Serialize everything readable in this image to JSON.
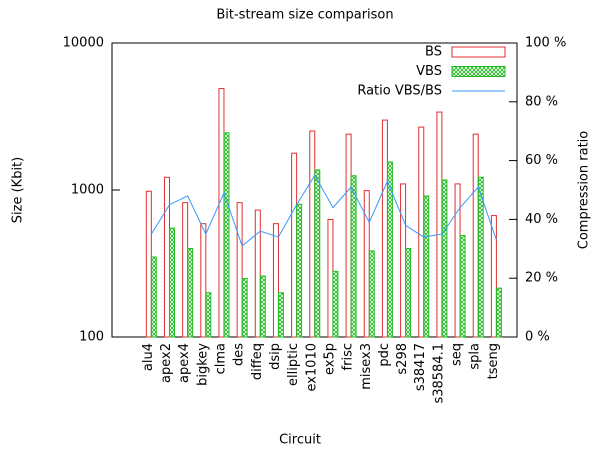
{
  "chart_data": {
    "type": "bar",
    "title": "Bit-stream size comparison",
    "x_label": "Circuit",
    "y_label": "Size (Kbit)",
    "y2_label": "Compression ratio",
    "log_y": true,
    "legend": "upper right",
    "categories": [
      "alu4",
      "apex2",
      "apex4",
      "bigkey",
      "clma",
      "des",
      "diffeq",
      "dsip",
      "elliptic",
      "ex1010",
      "ex5p",
      "frisc",
      "misex3",
      "pdc",
      "s298",
      "s38417",
      "s38584.1",
      "seq",
      "spla",
      "tseng"
    ],
    "series": [
      {
        "name": "BS",
        "type": "bar",
        "color": "#e03030",
        "values": [
          980,
          1220,
          820,
          590,
          4900,
          820,
          730,
          590,
          1780,
          2520,
          630,
          2400,
          990,
          2990,
          1100,
          2680,
          3390,
          1100,
          2400,
          670
        ]
      },
      {
        "name": "VBS",
        "type": "bar",
        "color": "#22bb22",
        "values": [
          350,
          550,
          400,
          200,
          2450,
          250,
          260,
          200,
          800,
          1370,
          280,
          1250,
          385,
          1550,
          400,
          910,
          1170,
          490,
          1220,
          215
        ]
      },
      {
        "name": "Ratio VBS/BS",
        "type": "line",
        "axis": "y2",
        "color": "#3399ff",
        "values": [
          35,
          45,
          48,
          35,
          49,
          31,
          36,
          34,
          45,
          55,
          44,
          51,
          39,
          53,
          38,
          34,
          35,
          44,
          51,
          33
        ]
      }
    ],
    "ylim": [
      100,
      10000
    ],
    "yticks": [
      100,
      1000,
      10000
    ],
    "y2lim": [
      0,
      100
    ],
    "y2ticks": [
      {
        "value": 0,
        "label": "0 %"
      },
      {
        "value": 20,
        "label": "20 %"
      },
      {
        "value": 40,
        "label": "40 %"
      },
      {
        "value": 60,
        "label": "60 %"
      },
      {
        "value": 80,
        "label": "80 %"
      },
      {
        "value": 100,
        "label": "100 %"
      }
    ]
  }
}
